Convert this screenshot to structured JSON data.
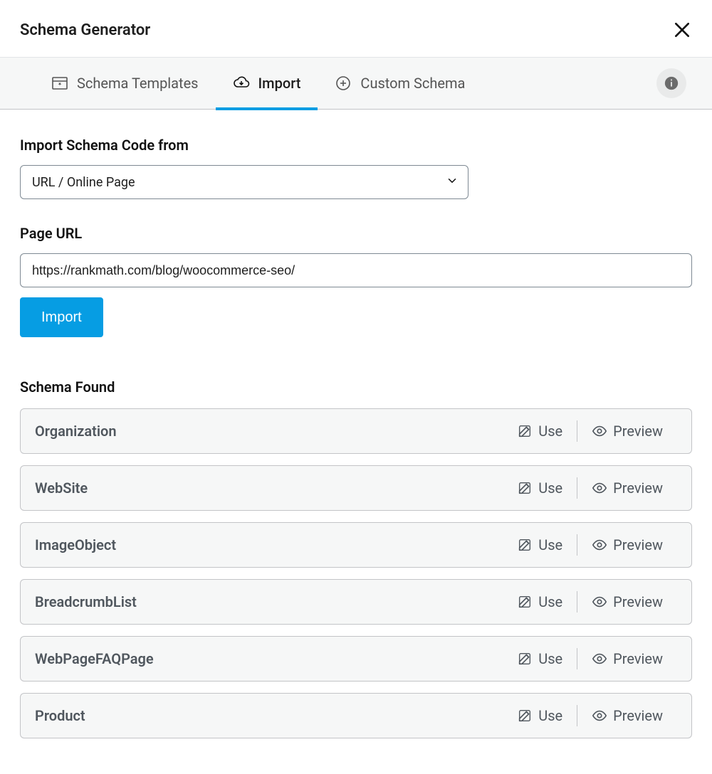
{
  "colors": {
    "accent": "#069de3",
    "text": "#1e1e1e",
    "muted": "#50575e",
    "border": "#c3c4c7",
    "inputBorder": "#7e8993",
    "rowBg": "#f6f7f7",
    "tabsBg": "#f6f7f7",
    "infoBg": "#e9eaea"
  },
  "header": {
    "title": "Schema Generator"
  },
  "tabs": {
    "templates": "Schema Templates",
    "import": "Import",
    "custom": "Custom Schema",
    "active": "import"
  },
  "importSection": {
    "label": "Import Schema Code from",
    "source": "URL / Online Page"
  },
  "urlSection": {
    "label": "Page URL",
    "value": "https://rankmath.com/blog/woocommerce-seo/"
  },
  "importButton": "Import",
  "found": {
    "heading": "Schema Found",
    "useLabel": "Use",
    "previewLabel": "Preview",
    "items": [
      {
        "name": "Organization"
      },
      {
        "name": "WebSite"
      },
      {
        "name": "ImageObject"
      },
      {
        "name": "BreadcrumbList"
      },
      {
        "name": "WebPageFAQPage"
      },
      {
        "name": "Product"
      }
    ]
  }
}
